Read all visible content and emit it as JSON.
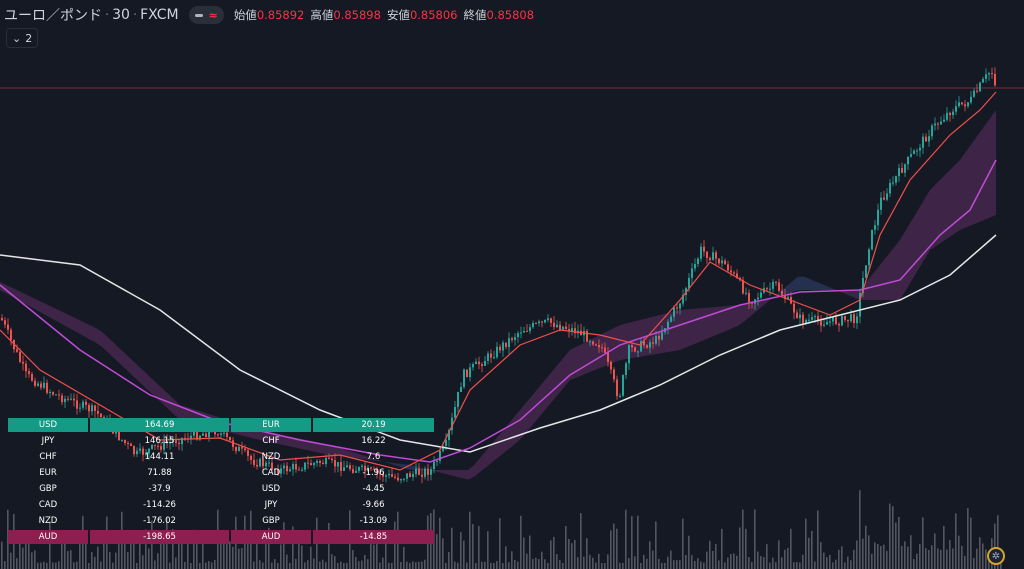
{
  "legend": {
    "symbol": "ユーロ／ポンド",
    "timeframe": "30",
    "source": "FXCM",
    "wave_glyph": "≈",
    "ohlc": [
      {
        "key": "始値",
        "value": "0.85892"
      },
      {
        "key": "高値",
        "value": "0.85898"
      },
      {
        "key": "安値",
        "value": "0.85806"
      },
      {
        "key": "終値",
        "value": "0.85808"
      }
    ],
    "collapse_count": "2"
  },
  "colors": {
    "background": "#151924",
    "up": "#26a69a",
    "down": "#ef5350",
    "ma_fast": "#f0504c",
    "ma_mid": "#c04bd6",
    "ma_slow": "#e6e6e6",
    "price_line": "#7a2a34",
    "strength_top": "#149a85",
    "strength_bottom": "#8c1f4f"
  },
  "strength_table": {
    "left": [
      {
        "currency": "USD",
        "value": "164.69"
      },
      {
        "currency": "JPY",
        "value": "146.15"
      },
      {
        "currency": "CHF",
        "value": "144.11"
      },
      {
        "currency": "EUR",
        "value": "71.88"
      },
      {
        "currency": "GBP",
        "value": "-37.9"
      },
      {
        "currency": "CAD",
        "value": "-114.26"
      },
      {
        "currency": "NZD",
        "value": "-176.02"
      },
      {
        "currency": "AUD",
        "value": "-198.65"
      }
    ],
    "right": [
      {
        "currency": "EUR",
        "value": "20.19"
      },
      {
        "currency": "CHF",
        "value": "16.22"
      },
      {
        "currency": "NZD",
        "value": "7.6"
      },
      {
        "currency": "CAD",
        "value": "-1.96"
      },
      {
        "currency": "USD",
        "value": "-4.45"
      },
      {
        "currency": "JPY",
        "value": "-9.66"
      },
      {
        "currency": "GBP",
        "value": "-13.09"
      },
      {
        "currency": "AUD",
        "value": "-14.85"
      }
    ]
  },
  "chart_data": {
    "type": "candlestick",
    "symbol": "ユーロ／ポンド",
    "interval": "30",
    "last_bar": {
      "open": 0.85892,
      "high": 0.85898,
      "low": 0.85806,
      "close": 0.85808
    },
    "price_path": [
      [
        0,
        318
      ],
      [
        25,
        375
      ],
      [
        55,
        395
      ],
      [
        95,
        412
      ],
      [
        135,
        455
      ],
      [
        175,
        440
      ],
      [
        215,
        430
      ],
      [
        250,
        460
      ],
      [
        280,
        470
      ],
      [
        320,
        462
      ],
      [
        360,
        470
      ],
      [
        395,
        478
      ],
      [
        430,
        470
      ],
      [
        445,
        445
      ],
      [
        462,
        375
      ],
      [
        490,
        355
      ],
      [
        520,
        330
      ],
      [
        548,
        322
      ],
      [
        578,
        332
      ],
      [
        600,
        345
      ],
      [
        618,
        398
      ],
      [
        628,
        350
      ],
      [
        655,
        340
      ],
      [
        680,
        300
      ],
      [
        700,
        250
      ],
      [
        725,
        265
      ],
      [
        750,
        300
      ],
      [
        775,
        285
      ],
      [
        800,
        320
      ],
      [
        830,
        322
      ],
      [
        855,
        318
      ],
      [
        868,
        245
      ],
      [
        880,
        200
      ],
      [
        900,
        170
      ],
      [
        930,
        130
      ],
      [
        950,
        110
      ],
      [
        970,
        100
      ],
      [
        990,
        70
      ],
      [
        996,
        88
      ]
    ],
    "ma_fast": [
      [
        0,
        330
      ],
      [
        40,
        370
      ],
      [
        100,
        405
      ],
      [
        160,
        440
      ],
      [
        220,
        438
      ],
      [
        280,
        460
      ],
      [
        340,
        455
      ],
      [
        400,
        470
      ],
      [
        440,
        450
      ],
      [
        470,
        390
      ],
      [
        520,
        345
      ],
      [
        560,
        330
      ],
      [
        600,
        335
      ],
      [
        640,
        345
      ],
      [
        680,
        300
      ],
      [
        710,
        262
      ],
      [
        750,
        285
      ],
      [
        790,
        300
      ],
      [
        830,
        315
      ],
      [
        860,
        300
      ],
      [
        880,
        235
      ],
      [
        910,
        180
      ],
      [
        950,
        135
      ],
      [
        980,
        110
      ],
      [
        996,
        92
      ]
    ],
    "ma_mid": [
      [
        0,
        285
      ],
      [
        80,
        350
      ],
      [
        150,
        395
      ],
      [
        220,
        422
      ],
      [
        300,
        440
      ],
      [
        380,
        455
      ],
      [
        430,
        462
      ],
      [
        470,
        448
      ],
      [
        520,
        420
      ],
      [
        570,
        375
      ],
      [
        620,
        345
      ],
      [
        680,
        325
      ],
      [
        740,
        305
      ],
      [
        800,
        292
      ],
      [
        860,
        290
      ],
      [
        900,
        280
      ],
      [
        940,
        235
      ],
      [
        970,
        210
      ],
      [
        996,
        160
      ]
    ],
    "ma_slow": [
      [
        0,
        255
      ],
      [
        80,
        265
      ],
      [
        160,
        310
      ],
      [
        240,
        370
      ],
      [
        320,
        410
      ],
      [
        400,
        440
      ],
      [
        470,
        452
      ],
      [
        540,
        428
      ],
      [
        600,
        410
      ],
      [
        660,
        385
      ],
      [
        720,
        355
      ],
      [
        780,
        330
      ],
      [
        840,
        315
      ],
      [
        900,
        300
      ],
      [
        950,
        275
      ],
      [
        996,
        235
      ]
    ],
    "cloud_a": [
      [
        0,
        282
      ],
      [
        100,
        330
      ],
      [
        180,
        405
      ],
      [
        260,
        430
      ],
      [
        330,
        445
      ],
      [
        410,
        470
      ],
      [
        470,
        470
      ],
      [
        520,
        410
      ],
      [
        570,
        350
      ],
      [
        620,
        325
      ],
      [
        680,
        310
      ],
      [
        740,
        305
      ],
      [
        800,
        290
      ],
      [
        860,
        290
      ],
      [
        900,
        240
      ],
      [
        930,
        190
      ],
      [
        960,
        160
      ],
      [
        996,
        110
      ]
    ],
    "cloud_b": [
      [
        0,
        290
      ],
      [
        100,
        345
      ],
      [
        180,
        420
      ],
      [
        260,
        440
      ],
      [
        330,
        455
      ],
      [
        410,
        465
      ],
      [
        470,
        480
      ],
      [
        520,
        440
      ],
      [
        570,
        380
      ],
      [
        620,
        360
      ],
      [
        680,
        350
      ],
      [
        740,
        325
      ],
      [
        800,
        275
      ],
      [
        860,
        300
      ],
      [
        900,
        300
      ],
      [
        930,
        250
      ],
      [
        960,
        230
      ],
      [
        996,
        215
      ]
    ]
  }
}
